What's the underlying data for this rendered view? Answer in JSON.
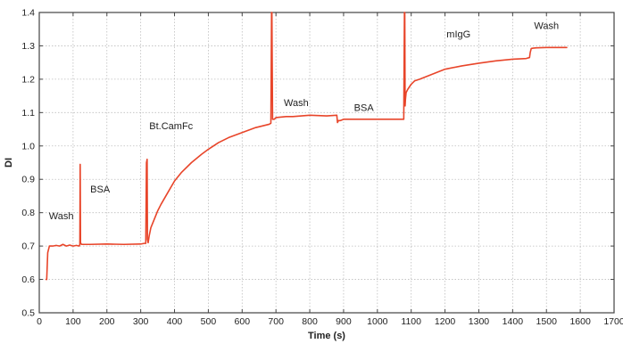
{
  "chart_data": {
    "type": "line",
    "title": "",
    "xlabel": "Time (s)",
    "ylabel": "DI",
    "xlim": [
      0,
      1700
    ],
    "ylim": [
      0.5,
      1.4
    ],
    "x_ticks": [
      0,
      100,
      200,
      300,
      400,
      500,
      600,
      700,
      800,
      900,
      1000,
      1100,
      1200,
      1300,
      1400,
      1500,
      1600,
      1700
    ],
    "x_tick_labels": [
      "0",
      "100",
      "200",
      "300",
      "400",
      "500",
      "600",
      "700",
      "800",
      "900",
      "1000",
      "1100",
      "1200",
      "1300",
      "1400",
      "1500",
      "1600",
      "1700"
    ],
    "y_ticks": [
      0.5,
      0.6,
      0.7,
      0.8,
      0.9,
      1.0,
      1.1,
      1.2,
      1.3,
      1.4
    ],
    "y_tick_labels": [
      "0.5",
      "0.6",
      "0.7",
      "0.8",
      "0.9",
      "1.0",
      "1.1",
      "1.2",
      "1.3",
      "1.4"
    ],
    "grid": true,
    "grid_style": "dotted",
    "series_color": "#e8452a",
    "axis_color": "#444444",
    "grid_color": "#bdbdbd",
    "series": [
      {
        "x": [
          20,
          22,
          25,
          30,
          35,
          40,
          50,
          60,
          70,
          80,
          90,
          100,
          110,
          118,
          120,
          121,
          122,
          125,
          150,
          200,
          250,
          300,
          310,
          315,
          317,
          319,
          320,
          322,
          325,
          330,
          340,
          350,
          360,
          380,
          400,
          420,
          450,
          480,
          500,
          530,
          560,
          600,
          640,
          680,
          685,
          687,
          688,
          690,
          695,
          700,
          730,
          750,
          800,
          850,
          880,
          882,
          885,
          890,
          900,
          950,
          1000,
          1050,
          1075,
          1078,
          1080,
          1081,
          1082,
          1083,
          1085,
          1090,
          1100,
          1110,
          1125,
          1150,
          1175,
          1200,
          1250,
          1300,
          1350,
          1400,
          1440,
          1450,
          1452,
          1455,
          1460,
          1470,
          1500,
          1530,
          1560
        ],
        "y": [
          0.6,
          0.6,
          0.68,
          0.7,
          0.7,
          0.7,
          0.702,
          0.7,
          0.705,
          0.7,
          0.703,
          0.7,
          0.702,
          0.7,
          0.705,
          0.945,
          0.71,
          0.705,
          0.705,
          0.706,
          0.705,
          0.706,
          0.708,
          0.708,
          0.95,
          0.96,
          0.72,
          0.71,
          0.73,
          0.755,
          0.78,
          0.805,
          0.825,
          0.86,
          0.895,
          0.92,
          0.95,
          0.975,
          0.99,
          1.01,
          1.025,
          1.04,
          1.055,
          1.065,
          1.068,
          1.4,
          1.4,
          1.08,
          1.08,
          1.085,
          1.088,
          1.088,
          1.092,
          1.09,
          1.092,
          1.07,
          1.076,
          1.076,
          1.08,
          1.08,
          1.08,
          1.08,
          1.08,
          1.08,
          1.4,
          1.4,
          1.12,
          1.14,
          1.16,
          1.17,
          1.185,
          1.195,
          1.2,
          1.21,
          1.22,
          1.23,
          1.24,
          1.248,
          1.255,
          1.26,
          1.262,
          1.265,
          1.28,
          1.292,
          1.293,
          1.294,
          1.295,
          1.295,
          1.295
        ]
      }
    ],
    "annotations": [
      {
        "text": "Wash",
        "x": 65,
        "y": 0.78
      },
      {
        "text": "BSA",
        "x": 180,
        "y": 0.86
      },
      {
        "text": "Bt.CamFc",
        "x": 390,
        "y": 1.05
      },
      {
        "text": "Wash",
        "x": 760,
        "y": 1.12
      },
      {
        "text": "BSA",
        "x": 960,
        "y": 1.105
      },
      {
        "text": "mIgG",
        "x": 1240,
        "y": 1.325
      },
      {
        "text": "Wash",
        "x": 1500,
        "y": 1.35
      }
    ]
  }
}
